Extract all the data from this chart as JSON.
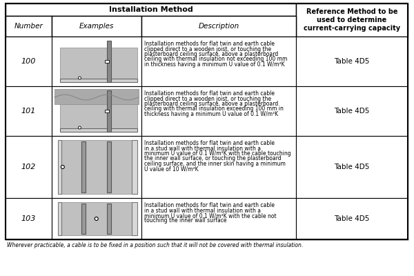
{
  "title": "Installation Method",
  "col_header_right": "Reference Method to be\nused to determine\ncurrent-carrying capacity",
  "sub_headers": [
    "Number",
    "Examples",
    "Description"
  ],
  "rows": [
    {
      "number": "100",
      "description_parts": [
        {
          "text": "Installation methods for flat twin and earth cable clipped direct to a wooden joist, or touching the plasterboard ceiling surface, above a plasterboard ceiling with thermal ",
          "underline": false
        },
        {
          "text": "insulation not exceeding",
          "underline": true
        },
        {
          "text": " 100 mm in thickness having a minimum U value of 0.1 W/m²K",
          "underline": false
        }
      ],
      "reference": "Table 4D5",
      "img_type": "ceiling_below"
    },
    {
      "number": "101",
      "description_parts": [
        {
          "text": "Installation methods for flat twin and earth cable clipped direct to a wooden joist, or touching the plasterboard ceiling surface, above a plasterboard ceiling with thermal ",
          "underline": false
        },
        {
          "text": "insulation exceeding",
          "underline": true
        },
        {
          "text": " 100 mm in thickness having a minimum U value of 0.1 W/m²K",
          "underline": false
        }
      ],
      "reference": "Table 4D5",
      "img_type": "ceiling_above"
    },
    {
      "number": "102",
      "description_parts": [
        {
          "text": "Installation methods for flat twin and earth cable in a stud wall with thermal insulation with a minimum U value of 0.1 W/m²K with the ",
          "underline": false
        },
        {
          "text": "cable touching the",
          "underline": true
        },
        {
          "text": " inner wall surface, or touching the plasterboard ceiling surface, and the inner skin having a minimum U value of 10 W/m²K",
          "underline": false
        }
      ],
      "reference": "Table 4D5",
      "img_type": "wall_touching"
    },
    {
      "number": "103",
      "description_parts": [
        {
          "text": "Installation methods for flat twin and earth cable in a stud wall with thermal insulation with a minimum U value of 0.1 W/m²K with the ",
          "underline": false
        },
        {
          "text": "cable not touching",
          "underline": true
        },
        {
          "text": " the inner wall surface",
          "underline": false
        }
      ],
      "reference": "Table 4D5",
      "img_type": "wall_not_touching"
    }
  ],
  "footer": "Wherever practicable, a cable is to be fixed in a position such that it will not be covered with thermal insulation.",
  "bg_color": "#ffffff",
  "header_bg": "#e8e8e8",
  "border_color": "#000000",
  "text_color": "#000000",
  "gray_fill": "#c8c8c8",
  "light_gray": "#d8d8d8"
}
